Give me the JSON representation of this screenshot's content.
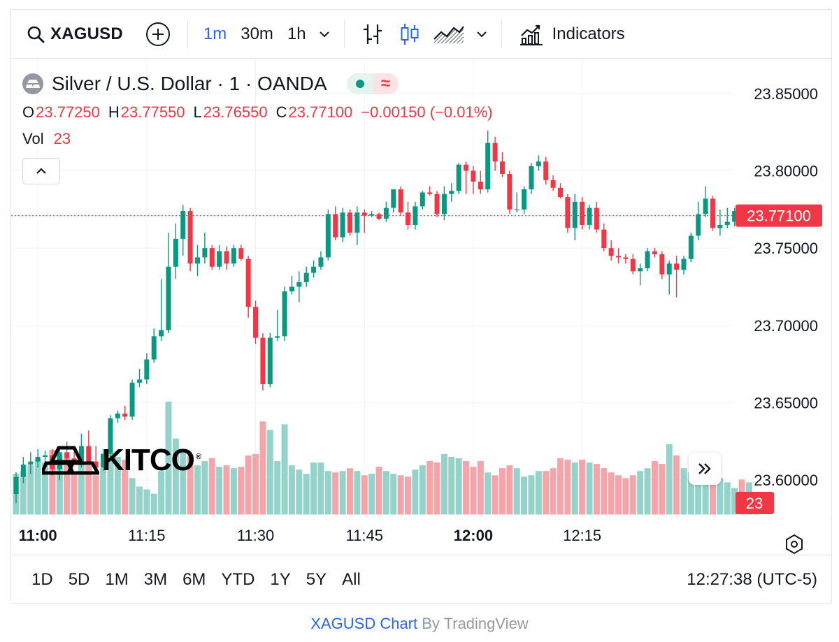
{
  "toolbar": {
    "symbol": "XAGUSD",
    "intervals": [
      "1m",
      "30m",
      "1h"
    ],
    "active_interval": "1m",
    "indicators_label": "Indicators"
  },
  "legend": {
    "title": "Silver / U.S. Dollar · 1 · OANDA",
    "badge_glyph": "≈",
    "open_label": "O",
    "open": "23.77250",
    "high_label": "H",
    "high": "23.77550",
    "low_label": "L",
    "low": "23.76550",
    "close_label": "C",
    "close": "23.77100",
    "change": "−0.00150 (−0.01%)",
    "vol_label": "Vol",
    "vol": "23"
  },
  "colors": {
    "up": "#089981",
    "down": "#f23645",
    "up_vol": "#94d3c9",
    "down_vol": "#f5a4a9",
    "accent": "#2962ff"
  },
  "bottombar": {
    "ranges": [
      "1D",
      "5D",
      "1M",
      "3M",
      "6M",
      "YTD",
      "1Y",
      "5Y",
      "All"
    ],
    "clock": "12:27:38 (UTC-5)"
  },
  "footer": {
    "link": "XAGUSD Chart",
    "by": " By TradingView"
  },
  "logo": {
    "text": "KITCO",
    "mark": "®"
  },
  "chart_data": {
    "type": "candlestick",
    "symbol": "XAGUSD",
    "interval": "1m",
    "ylim": [
      23.5775,
      23.8725
    ],
    "price_ticks": [
      "23.85000",
      "23.80000",
      "23.75000",
      "23.70000",
      "23.65000",
      "23.60000"
    ],
    "price_tick_values": [
      23.85,
      23.8,
      23.75,
      23.7,
      23.65,
      23.6
    ],
    "last_price_label": "23.77100",
    "last_price": 23.771,
    "volume_label": "23",
    "time_ticks": [
      {
        "label": "11:00",
        "index": 3,
        "bold": true
      },
      {
        "label": "11:15",
        "index": 18,
        "bold": false
      },
      {
        "label": "11:30",
        "index": 33,
        "bold": false
      },
      {
        "label": "11:45",
        "index": 48,
        "bold": false
      },
      {
        "label": "12:00",
        "index": 63,
        "bold": true
      },
      {
        "label": "12:15",
        "index": 78,
        "bold": false
      }
    ],
    "candles": [
      {
        "o": 23.591,
        "h": 23.605,
        "l": 23.585,
        "c": 23.602,
        "v": 58
      },
      {
        "o": 23.602,
        "h": 23.615,
        "l": 23.598,
        "c": 23.61,
        "v": 62
      },
      {
        "o": 23.61,
        "h": 23.618,
        "l": 23.604,
        "c": 23.612,
        "v": 70
      },
      {
        "o": 23.612,
        "h": 23.62,
        "l": 23.608,
        "c": 23.615,
        "v": 78
      },
      {
        "o": 23.615,
        "h": 23.619,
        "l": 23.611,
        "c": 23.616,
        "v": 74
      },
      {
        "o": 23.616,
        "h": 23.62,
        "l": 23.603,
        "c": 23.607,
        "v": 92
      },
      {
        "o": 23.607,
        "h": 23.622,
        "l": 23.6,
        "c": 23.618,
        "v": 84
      },
      {
        "o": 23.618,
        "h": 23.625,
        "l": 23.612,
        "c": 23.614,
        "v": 80
      },
      {
        "o": 23.614,
        "h": 23.618,
        "l": 23.61,
        "c": 23.612,
        "v": 60
      },
      {
        "o": 23.612,
        "h": 23.63,
        "l": 23.608,
        "c": 23.622,
        "v": 75
      },
      {
        "o": 23.622,
        "h": 23.632,
        "l": 23.61,
        "c": 23.612,
        "v": 70
      },
      {
        "o": 23.612,
        "h": 23.622,
        "l": 23.605,
        "c": 23.608,
        "v": 56
      },
      {
        "o": 23.608,
        "h": 23.62,
        "l": 23.606,
        "c": 23.617,
        "v": 66
      },
      {
        "o": 23.617,
        "h": 23.642,
        "l": 23.615,
        "c": 23.64,
        "v": 88
      },
      {
        "o": 23.64,
        "h": 23.645,
        "l": 23.637,
        "c": 23.643,
        "v": 82
      },
      {
        "o": 23.643,
        "h": 23.648,
        "l": 23.639,
        "c": 23.641,
        "v": 78
      },
      {
        "o": 23.641,
        "h": 23.665,
        "l": 23.639,
        "c": 23.663,
        "v": 52
      },
      {
        "o": 23.663,
        "h": 23.672,
        "l": 23.66,
        "c": 23.665,
        "v": 40
      },
      {
        "o": 23.665,
        "h": 23.682,
        "l": 23.662,
        "c": 23.678,
        "v": 36
      },
      {
        "o": 23.678,
        "h": 23.698,
        "l": 23.676,
        "c": 23.693,
        "v": 30
      },
      {
        "o": 23.693,
        "h": 23.73,
        "l": 23.69,
        "c": 23.697,
        "v": 62
      },
      {
        "o": 23.697,
        "h": 23.76,
        "l": 23.695,
        "c": 23.738,
        "v": 160
      },
      {
        "o": 23.738,
        "h": 23.766,
        "l": 23.73,
        "c": 23.756,
        "v": 108
      },
      {
        "o": 23.756,
        "h": 23.778,
        "l": 23.745,
        "c": 23.774,
        "v": 90
      },
      {
        "o": 23.774,
        "h": 23.776,
        "l": 23.735,
        "c": 23.74,
        "v": 84
      },
      {
        "o": 23.74,
        "h": 23.752,
        "l": 23.732,
        "c": 23.744,
        "v": 70
      },
      {
        "o": 23.744,
        "h": 23.76,
        "l": 23.74,
        "c": 23.75,
        "v": 76
      },
      {
        "o": 23.75,
        "h": 23.752,
        "l": 23.736,
        "c": 23.738,
        "v": 80
      },
      {
        "o": 23.738,
        "h": 23.752,
        "l": 23.736,
        "c": 23.748,
        "v": 68
      },
      {
        "o": 23.748,
        "h": 23.751,
        "l": 23.736,
        "c": 23.74,
        "v": 70
      },
      {
        "o": 23.74,
        "h": 23.752,
        "l": 23.738,
        "c": 23.75,
        "v": 66
      },
      {
        "o": 23.75,
        "h": 23.752,
        "l": 23.742,
        "c": 23.743,
        "v": 68
      },
      {
        "o": 23.743,
        "h": 23.745,
        "l": 23.705,
        "c": 23.712,
        "v": 84
      },
      {
        "o": 23.712,
        "h": 23.716,
        "l": 23.688,
        "c": 23.692,
        "v": 86
      },
      {
        "o": 23.692,
        "h": 23.695,
        "l": 23.658,
        "c": 23.662,
        "v": 132
      },
      {
        "o": 23.662,
        "h": 23.695,
        "l": 23.66,
        "c": 23.692,
        "v": 120
      },
      {
        "o": 23.692,
        "h": 23.71,
        "l": 23.69,
        "c": 23.693,
        "v": 76
      },
      {
        "o": 23.693,
        "h": 23.725,
        "l": 23.69,
        "c": 23.722,
        "v": 128
      },
      {
        "o": 23.722,
        "h": 23.732,
        "l": 23.72,
        "c": 23.725,
        "v": 70
      },
      {
        "o": 23.725,
        "h": 23.735,
        "l": 23.715,
        "c": 23.728,
        "v": 64
      },
      {
        "o": 23.728,
        "h": 23.738,
        "l": 23.725,
        "c": 23.734,
        "v": 58
      },
      {
        "o": 23.734,
        "h": 23.742,
        "l": 23.731,
        "c": 23.738,
        "v": 74
      },
      {
        "o": 23.738,
        "h": 23.748,
        "l": 23.736,
        "c": 23.744,
        "v": 74
      },
      {
        "o": 23.744,
        "h": 23.775,
        "l": 23.742,
        "c": 23.772,
        "v": 62
      },
      {
        "o": 23.772,
        "h": 23.777,
        "l": 23.755,
        "c": 23.757,
        "v": 60
      },
      {
        "o": 23.757,
        "h": 23.776,
        "l": 23.754,
        "c": 23.773,
        "v": 62
      },
      {
        "o": 23.773,
        "h": 23.775,
        "l": 23.758,
        "c": 23.76,
        "v": 66
      },
      {
        "o": 23.76,
        "h": 23.777,
        "l": 23.752,
        "c": 23.773,
        "v": 62
      },
      {
        "o": 23.773,
        "h": 23.775,
        "l": 23.76,
        "c": 23.771,
        "v": 56
      },
      {
        "o": 23.771,
        "h": 23.774,
        "l": 23.77,
        "c": 23.772,
        "v": 58
      },
      {
        "o": 23.772,
        "h": 23.773,
        "l": 23.768,
        "c": 23.769,
        "v": 68
      },
      {
        "o": 23.769,
        "h": 23.78,
        "l": 23.767,
        "c": 23.776,
        "v": 62
      },
      {
        "o": 23.776,
        "h": 23.788,
        "l": 23.773,
        "c": 23.788,
        "v": 58
      },
      {
        "o": 23.788,
        "h": 23.79,
        "l": 23.771,
        "c": 23.773,
        "v": 56
      },
      {
        "o": 23.773,
        "h": 23.78,
        "l": 23.762,
        "c": 23.765,
        "v": 54
      },
      {
        "o": 23.765,
        "h": 23.78,
        "l": 23.762,
        "c": 23.777,
        "v": 64
      },
      {
        "o": 23.777,
        "h": 23.787,
        "l": 23.775,
        "c": 23.786,
        "v": 70
      },
      {
        "o": 23.786,
        "h": 23.79,
        "l": 23.784,
        "c": 23.785,
        "v": 76
      },
      {
        "o": 23.785,
        "h": 23.787,
        "l": 23.77,
        "c": 23.772,
        "v": 74
      },
      {
        "o": 23.772,
        "h": 23.79,
        "l": 23.768,
        "c": 23.785,
        "v": 86
      },
      {
        "o": 23.785,
        "h": 23.792,
        "l": 23.78,
        "c": 23.787,
        "v": 82
      },
      {
        "o": 23.787,
        "h": 23.805,
        "l": 23.785,
        "c": 23.804,
        "v": 80
      },
      {
        "o": 23.804,
        "h": 23.806,
        "l": 23.785,
        "c": 23.8,
        "v": 76
      },
      {
        "o": 23.8,
        "h": 23.803,
        "l": 23.785,
        "c": 23.793,
        "v": 68
      },
      {
        "o": 23.793,
        "h": 23.8,
        "l": 23.785,
        "c": 23.788,
        "v": 76
      },
      {
        "o": 23.788,
        "h": 23.826,
        "l": 23.786,
        "c": 23.818,
        "v": 60
      },
      {
        "o": 23.818,
        "h": 23.822,
        "l": 23.8,
        "c": 23.806,
        "v": 56
      },
      {
        "o": 23.806,
        "h": 23.812,
        "l": 23.796,
        "c": 23.798,
        "v": 66
      },
      {
        "o": 23.798,
        "h": 23.8,
        "l": 23.772,
        "c": 23.775,
        "v": 70
      },
      {
        "o": 23.775,
        "h": 23.786,
        "l": 23.773,
        "c": 23.775,
        "v": 66
      },
      {
        "o": 23.775,
        "h": 23.79,
        "l": 23.772,
        "c": 23.788,
        "v": 54
      },
      {
        "o": 23.788,
        "h": 23.805,
        "l": 23.785,
        "c": 23.803,
        "v": 56
      },
      {
        "o": 23.803,
        "h": 23.81,
        "l": 23.8,
        "c": 23.806,
        "v": 62
      },
      {
        "o": 23.806,
        "h": 23.809,
        "l": 23.791,
        "c": 23.794,
        "v": 62
      },
      {
        "o": 23.794,
        "h": 23.797,
        "l": 23.787,
        "c": 23.789,
        "v": 66
      },
      {
        "o": 23.789,
        "h": 23.792,
        "l": 23.782,
        "c": 23.783,
        "v": 80
      },
      {
        "o": 23.783,
        "h": 23.785,
        "l": 23.76,
        "c": 23.763,
        "v": 78
      },
      {
        "o": 23.763,
        "h": 23.785,
        "l": 23.755,
        "c": 23.78,
        "v": 74
      },
      {
        "o": 23.78,
        "h": 23.783,
        "l": 23.762,
        "c": 23.765,
        "v": 78
      },
      {
        "o": 23.765,
        "h": 23.778,
        "l": 23.762,
        "c": 23.776,
        "v": 74
      },
      {
        "o": 23.776,
        "h": 23.78,
        "l": 23.76,
        "c": 23.762,
        "v": 72
      },
      {
        "o": 23.762,
        "h": 23.766,
        "l": 23.748,
        "c": 23.75,
        "v": 66
      },
      {
        "o": 23.75,
        "h": 23.755,
        "l": 23.742,
        "c": 23.745,
        "v": 60
      },
      {
        "o": 23.745,
        "h": 23.75,
        "l": 23.74,
        "c": 23.744,
        "v": 56
      },
      {
        "o": 23.744,
        "h": 23.746,
        "l": 23.74,
        "c": 23.743,
        "v": 52
      },
      {
        "o": 23.743,
        "h": 23.746,
        "l": 23.733,
        "c": 23.735,
        "v": 56
      },
      {
        "o": 23.735,
        "h": 23.74,
        "l": 23.726,
        "c": 23.737,
        "v": 62
      },
      {
        "o": 23.737,
        "h": 23.75,
        "l": 23.735,
        "c": 23.748,
        "v": 66
      },
      {
        "o": 23.748,
        "h": 23.75,
        "l": 23.744,
        "c": 23.746,
        "v": 76
      },
      {
        "o": 23.746,
        "h": 23.748,
        "l": 23.73,
        "c": 23.733,
        "v": 72
      },
      {
        "o": 23.733,
        "h": 23.742,
        "l": 23.72,
        "c": 23.74,
        "v": 100
      },
      {
        "o": 23.74,
        "h": 23.745,
        "l": 23.718,
        "c": 23.736,
        "v": 84
      },
      {
        "o": 23.736,
        "h": 23.745,
        "l": 23.733,
        "c": 23.743,
        "v": 66
      },
      {
        "o": 23.743,
        "h": 23.76,
        "l": 23.741,
        "c": 23.758,
        "v": 60
      },
      {
        "o": 23.758,
        "h": 23.78,
        "l": 23.755,
        "c": 23.772,
        "v": 44
      },
      {
        "o": 23.772,
        "h": 23.79,
        "l": 23.77,
        "c": 23.782,
        "v": 48
      },
      {
        "o": 23.782,
        "h": 23.784,
        "l": 23.761,
        "c": 23.763,
        "v": 56
      },
      {
        "o": 23.763,
        "h": 23.775,
        "l": 23.758,
        "c": 23.765,
        "v": 52
      },
      {
        "o": 23.765,
        "h": 23.776,
        "l": 23.763,
        "c": 23.767,
        "v": 46
      },
      {
        "o": 23.767,
        "h": 23.776,
        "l": 23.764,
        "c": 23.774,
        "v": 38
      },
      {
        "o": 23.774,
        "h": 23.776,
        "l": 23.769,
        "c": 23.771,
        "v": 50
      },
      {
        "o": 23.771,
        "h": 23.775,
        "l": 23.767,
        "c": 23.772,
        "v": 46
      },
      {
        "o": 23.7725,
        "h": 23.7755,
        "l": 23.7655,
        "c": 23.771,
        "v": 23
      }
    ]
  }
}
